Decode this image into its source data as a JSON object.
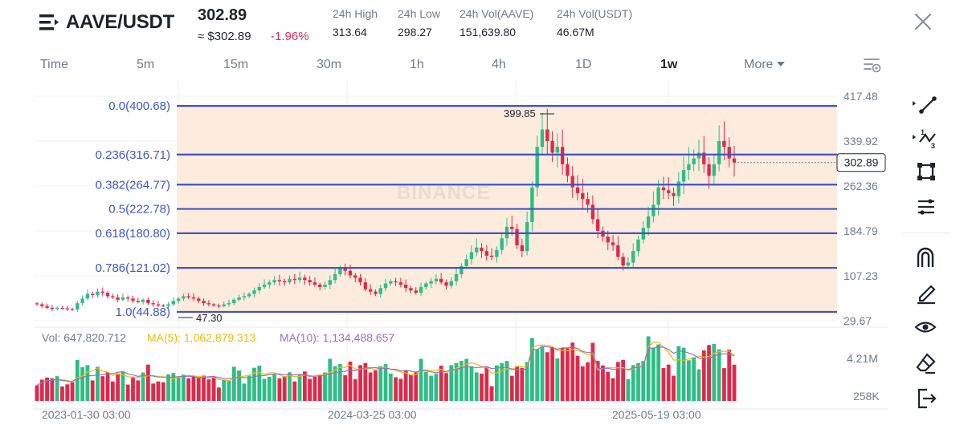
{
  "header": {
    "pair": "AAVE/USDT",
    "last_price": "302.89",
    "approx_price": "≈ $302.89",
    "change_pct": "-1.96%",
    "stats": [
      {
        "label": "24h High",
        "value": "313.64"
      },
      {
        "label": "24h Low",
        "value": "298.27"
      },
      {
        "label": "24h Vol(AAVE)",
        "value": "151,639.80"
      },
      {
        "label": "24h Vol(USDT)",
        "value": "46.67M"
      }
    ]
  },
  "timeframes": [
    {
      "label": "Time",
      "active": false
    },
    {
      "label": "5m",
      "active": false
    },
    {
      "label": "15m",
      "active": false
    },
    {
      "label": "30m",
      "active": false
    },
    {
      "label": "1h",
      "active": false
    },
    {
      "label": "4h",
      "active": false
    },
    {
      "label": "1D",
      "active": false
    },
    {
      "label": "1w",
      "active": true
    },
    {
      "label": "More",
      "active": false
    }
  ],
  "chart": {
    "watermark": "BINANCE",
    "price_axis": [
      "417.48",
      "339.92",
      "262.36",
      "184.79",
      "107.23",
      "29.67"
    ],
    "current_price_label": "302.89",
    "high_marker": "399.85",
    "low_marker": "47.30",
    "fib_levels": [
      {
        "ratio": 0.0,
        "price": 400.68,
        "label": "0.0(400.68)"
      },
      {
        "ratio": 0.236,
        "price": 316.71,
        "label": "0.236(316.71)"
      },
      {
        "ratio": 0.382,
        "price": 264.77,
        "label": "0.382(264.77)"
      },
      {
        "ratio": 0.5,
        "price": 222.78,
        "label": "0.5(222.78)"
      },
      {
        "ratio": 0.618,
        "price": 180.8,
        "label": "0.618(180.80)"
      },
      {
        "ratio": 0.786,
        "price": 121.02,
        "label": "0.786(121.02)"
      },
      {
        "ratio": 1.0,
        "price": 44.88,
        "label": "1.0(44.88)"
      }
    ],
    "volume_legend": {
      "vol": "Vol: 647,820.712",
      "ma5": "MA(5): 1,062,879.313",
      "ma10": "MA(10): 1,134,488.657"
    },
    "volume_axis": [
      "4.21M",
      "258K"
    ],
    "time_axis": [
      "2023-01-30 03:00",
      "2024-03-25 03:00",
      "2025-05-19 03:00"
    ],
    "colors": {
      "up": "#2ebd85",
      "down": "#e0294a",
      "fib_line": "#3d55c8",
      "fib_label": "#3d55c8",
      "fib_fill": "#fdebdd",
      "ma5": "#f0b90b",
      "ma10": "#9b6fbf"
    }
  },
  "chart_data": {
    "type": "candlestick",
    "interval": "1w",
    "approx_closes": [
      58,
      55,
      52,
      50,
      52,
      51,
      50,
      49,
      60,
      68,
      76,
      74,
      80,
      78,
      72,
      70,
      66,
      70,
      68,
      64,
      62,
      66,
      60,
      58,
      56,
      55,
      58,
      64,
      68,
      72,
      70,
      68,
      64,
      60,
      58,
      56,
      55,
      58,
      60,
      66,
      70,
      72,
      76,
      82,
      88,
      92,
      96,
      100,
      98,
      96,
      102,
      100,
      104,
      100,
      96,
      92,
      88,
      92,
      100,
      110,
      120,
      116,
      108,
      104,
      96,
      84,
      80,
      76,
      86,
      94,
      98,
      96,
      92,
      86,
      82,
      78,
      88,
      94,
      98,
      102,
      96,
      90,
      98,
      110,
      124,
      136,
      148,
      156,
      150,
      142,
      140,
      152,
      172,
      192,
      188,
      160,
      150,
      200,
      260,
      330,
      360,
      340,
      320,
      330,
      300,
      280,
      260,
      250,
      240,
      230,
      205,
      185,
      175,
      165,
      160,
      140,
      125,
      130,
      150,
      170,
      190,
      210,
      230,
      260,
      255,
      250,
      245,
      270,
      290,
      300,
      310,
      320,
      300,
      280,
      300,
      340,
      330,
      310,
      302.89
    ],
    "ylim": [
      29.67,
      417.48
    ]
  }
}
